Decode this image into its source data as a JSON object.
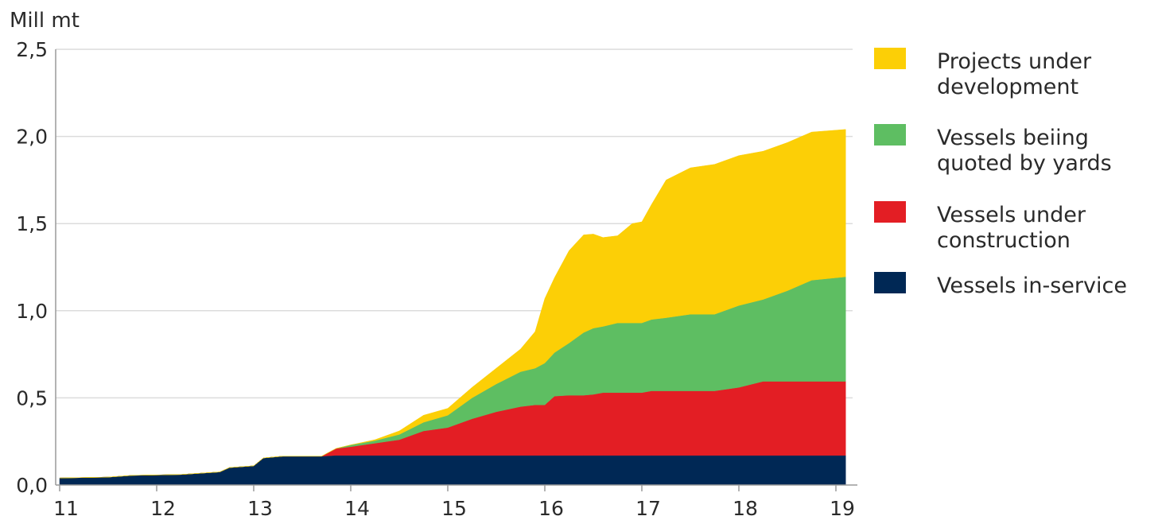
{
  "chart_data": {
    "type": "area",
    "stacked": true,
    "ylabel": "Mill mt",
    "xlabel": "",
    "ylim": [
      0,
      2.5
    ],
    "y_ticks": [
      "0,0",
      "0,5",
      "1,0",
      "1,5",
      "2,0",
      "2,5"
    ],
    "x_ticks": [
      "11",
      "12",
      "13",
      "14",
      "15",
      "16",
      "17",
      "18",
      "19"
    ],
    "grid": true,
    "legend_position": "right",
    "x": [
      11.0,
      11.5,
      11.75,
      12.25,
      12.65,
      12.75,
      13.0,
      13.1,
      13.3,
      13.7,
      13.85,
      14.0,
      14.25,
      14.5,
      14.75,
      15.0,
      15.25,
      15.5,
      15.75,
      15.9,
      16.0,
      16.1,
      16.25,
      16.4,
      16.5,
      16.6,
      16.75,
      16.9,
      17.0,
      17.1,
      17.25,
      17.5,
      17.75,
      18.0,
      18.25,
      18.5,
      18.75,
      19.1
    ],
    "series": [
      {
        "name": "Vessels in-service",
        "color": "#002855",
        "values": [
          0.04,
          0.045,
          0.055,
          0.06,
          0.075,
          0.1,
          0.11,
          0.155,
          0.165,
          0.165,
          0.17,
          0.17,
          0.17,
          0.17,
          0.17,
          0.17,
          0.17,
          0.17,
          0.17,
          0.17,
          0.17,
          0.17,
          0.17,
          0.17,
          0.17,
          0.17,
          0.17,
          0.17,
          0.17,
          0.17,
          0.17,
          0.17,
          0.17,
          0.17,
          0.17,
          0.17,
          0.17,
          0.17
        ]
      },
      {
        "name": "Vessels under construction",
        "color": "#e31e24",
        "values": [
          0,
          0,
          0,
          0,
          0,
          0,
          0,
          0,
          0,
          0,
          0.04,
          0.05,
          0.07,
          0.09,
          0.14,
          0.16,
          0.21,
          0.25,
          0.28,
          0.29,
          0.29,
          0.34,
          0.345,
          0.345,
          0.35,
          0.36,
          0.36,
          0.36,
          0.36,
          0.37,
          0.37,
          0.37,
          0.37,
          0.39,
          0.425,
          0.425,
          0.425,
          0.425
        ]
      },
      {
        "name": "Vessels beiing quoted by yards",
        "color": "#5ebe62",
        "values": [
          0,
          0,
          0,
          0,
          0,
          0,
          0,
          0,
          0,
          0,
          0,
          0.01,
          0.015,
          0.03,
          0.05,
          0.07,
          0.12,
          0.16,
          0.2,
          0.21,
          0.24,
          0.25,
          0.3,
          0.36,
          0.38,
          0.38,
          0.4,
          0.4,
          0.4,
          0.41,
          0.42,
          0.44,
          0.44,
          0.47,
          0.47,
          0.52,
          0.58,
          0.6
        ]
      },
      {
        "name": "Projects under development",
        "color": "#fccf06",
        "values": [
          0,
          0,
          0,
          0,
          0,
          0,
          0,
          0,
          0,
          0,
          0,
          0,
          0.005,
          0.02,
          0.04,
          0.04,
          0.06,
          0.09,
          0.13,
          0.21,
          0.37,
          0.43,
          0.53,
          0.56,
          0.54,
          0.51,
          0.5,
          0.57,
          0.58,
          0.66,
          0.79,
          0.84,
          0.86,
          0.86,
          0.85,
          0.85,
          0.85,
          0.845
        ]
      }
    ]
  }
}
